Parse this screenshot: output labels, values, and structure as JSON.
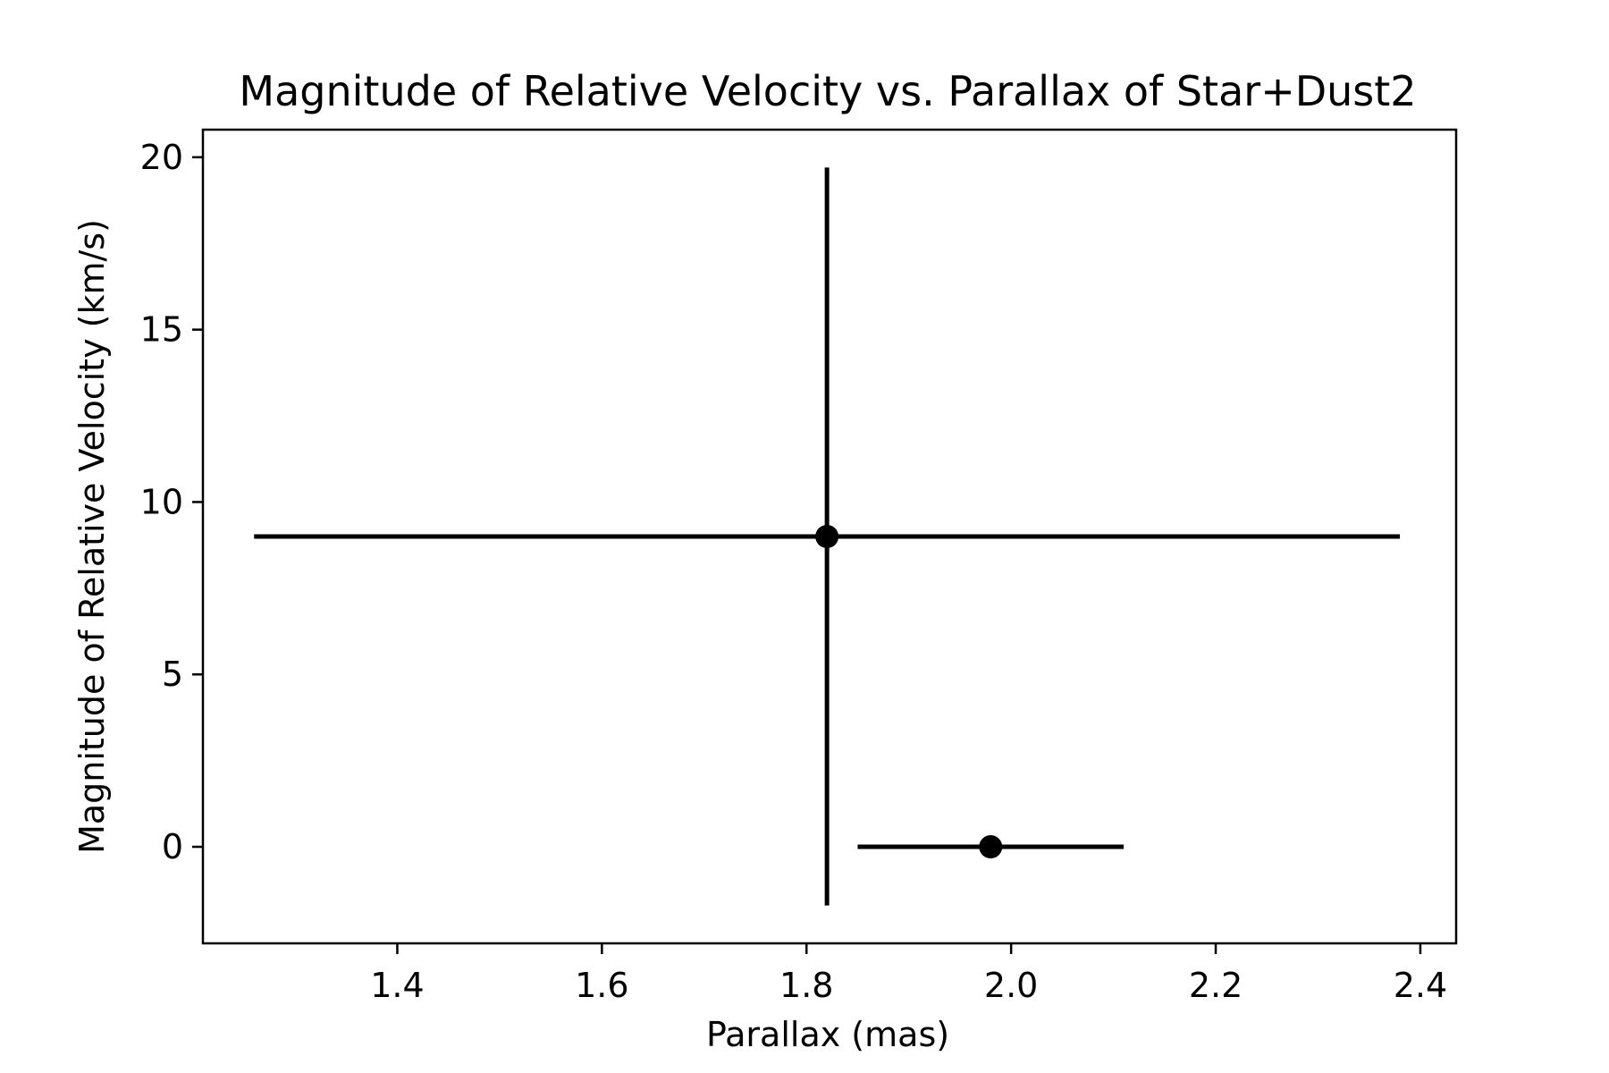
{
  "chart_data": {
    "type": "scatter",
    "title": "Magnitude of Relative Velocity vs. Parallax of Star+Dust2",
    "xlabel": "Parallax (mas)",
    "ylabel": "Magnitude of Relative Velocity (km/s)",
    "xlim": [
      1.21,
      2.435
    ],
    "ylim": [
      -2.8,
      20.8
    ],
    "xticks": [
      1.4,
      1.6,
      1.8,
      2.0,
      2.2,
      2.4
    ],
    "xtick_labels": [
      "1.4",
      "1.6",
      "1.8",
      "2.0",
      "2.2",
      "2.4"
    ],
    "yticks": [
      0,
      5,
      10,
      15,
      20
    ],
    "ytick_labels": [
      "0",
      "5",
      "10",
      "15",
      "20"
    ],
    "grid": false,
    "legend": "none",
    "marker_color": "#000000",
    "points": [
      {
        "x": 1.82,
        "y": 9.0,
        "xerr": 0.56,
        "yerr": 10.7
      },
      {
        "x": 1.98,
        "y": 0.0,
        "xerr": 0.13,
        "yerr": 0
      }
    ]
  }
}
